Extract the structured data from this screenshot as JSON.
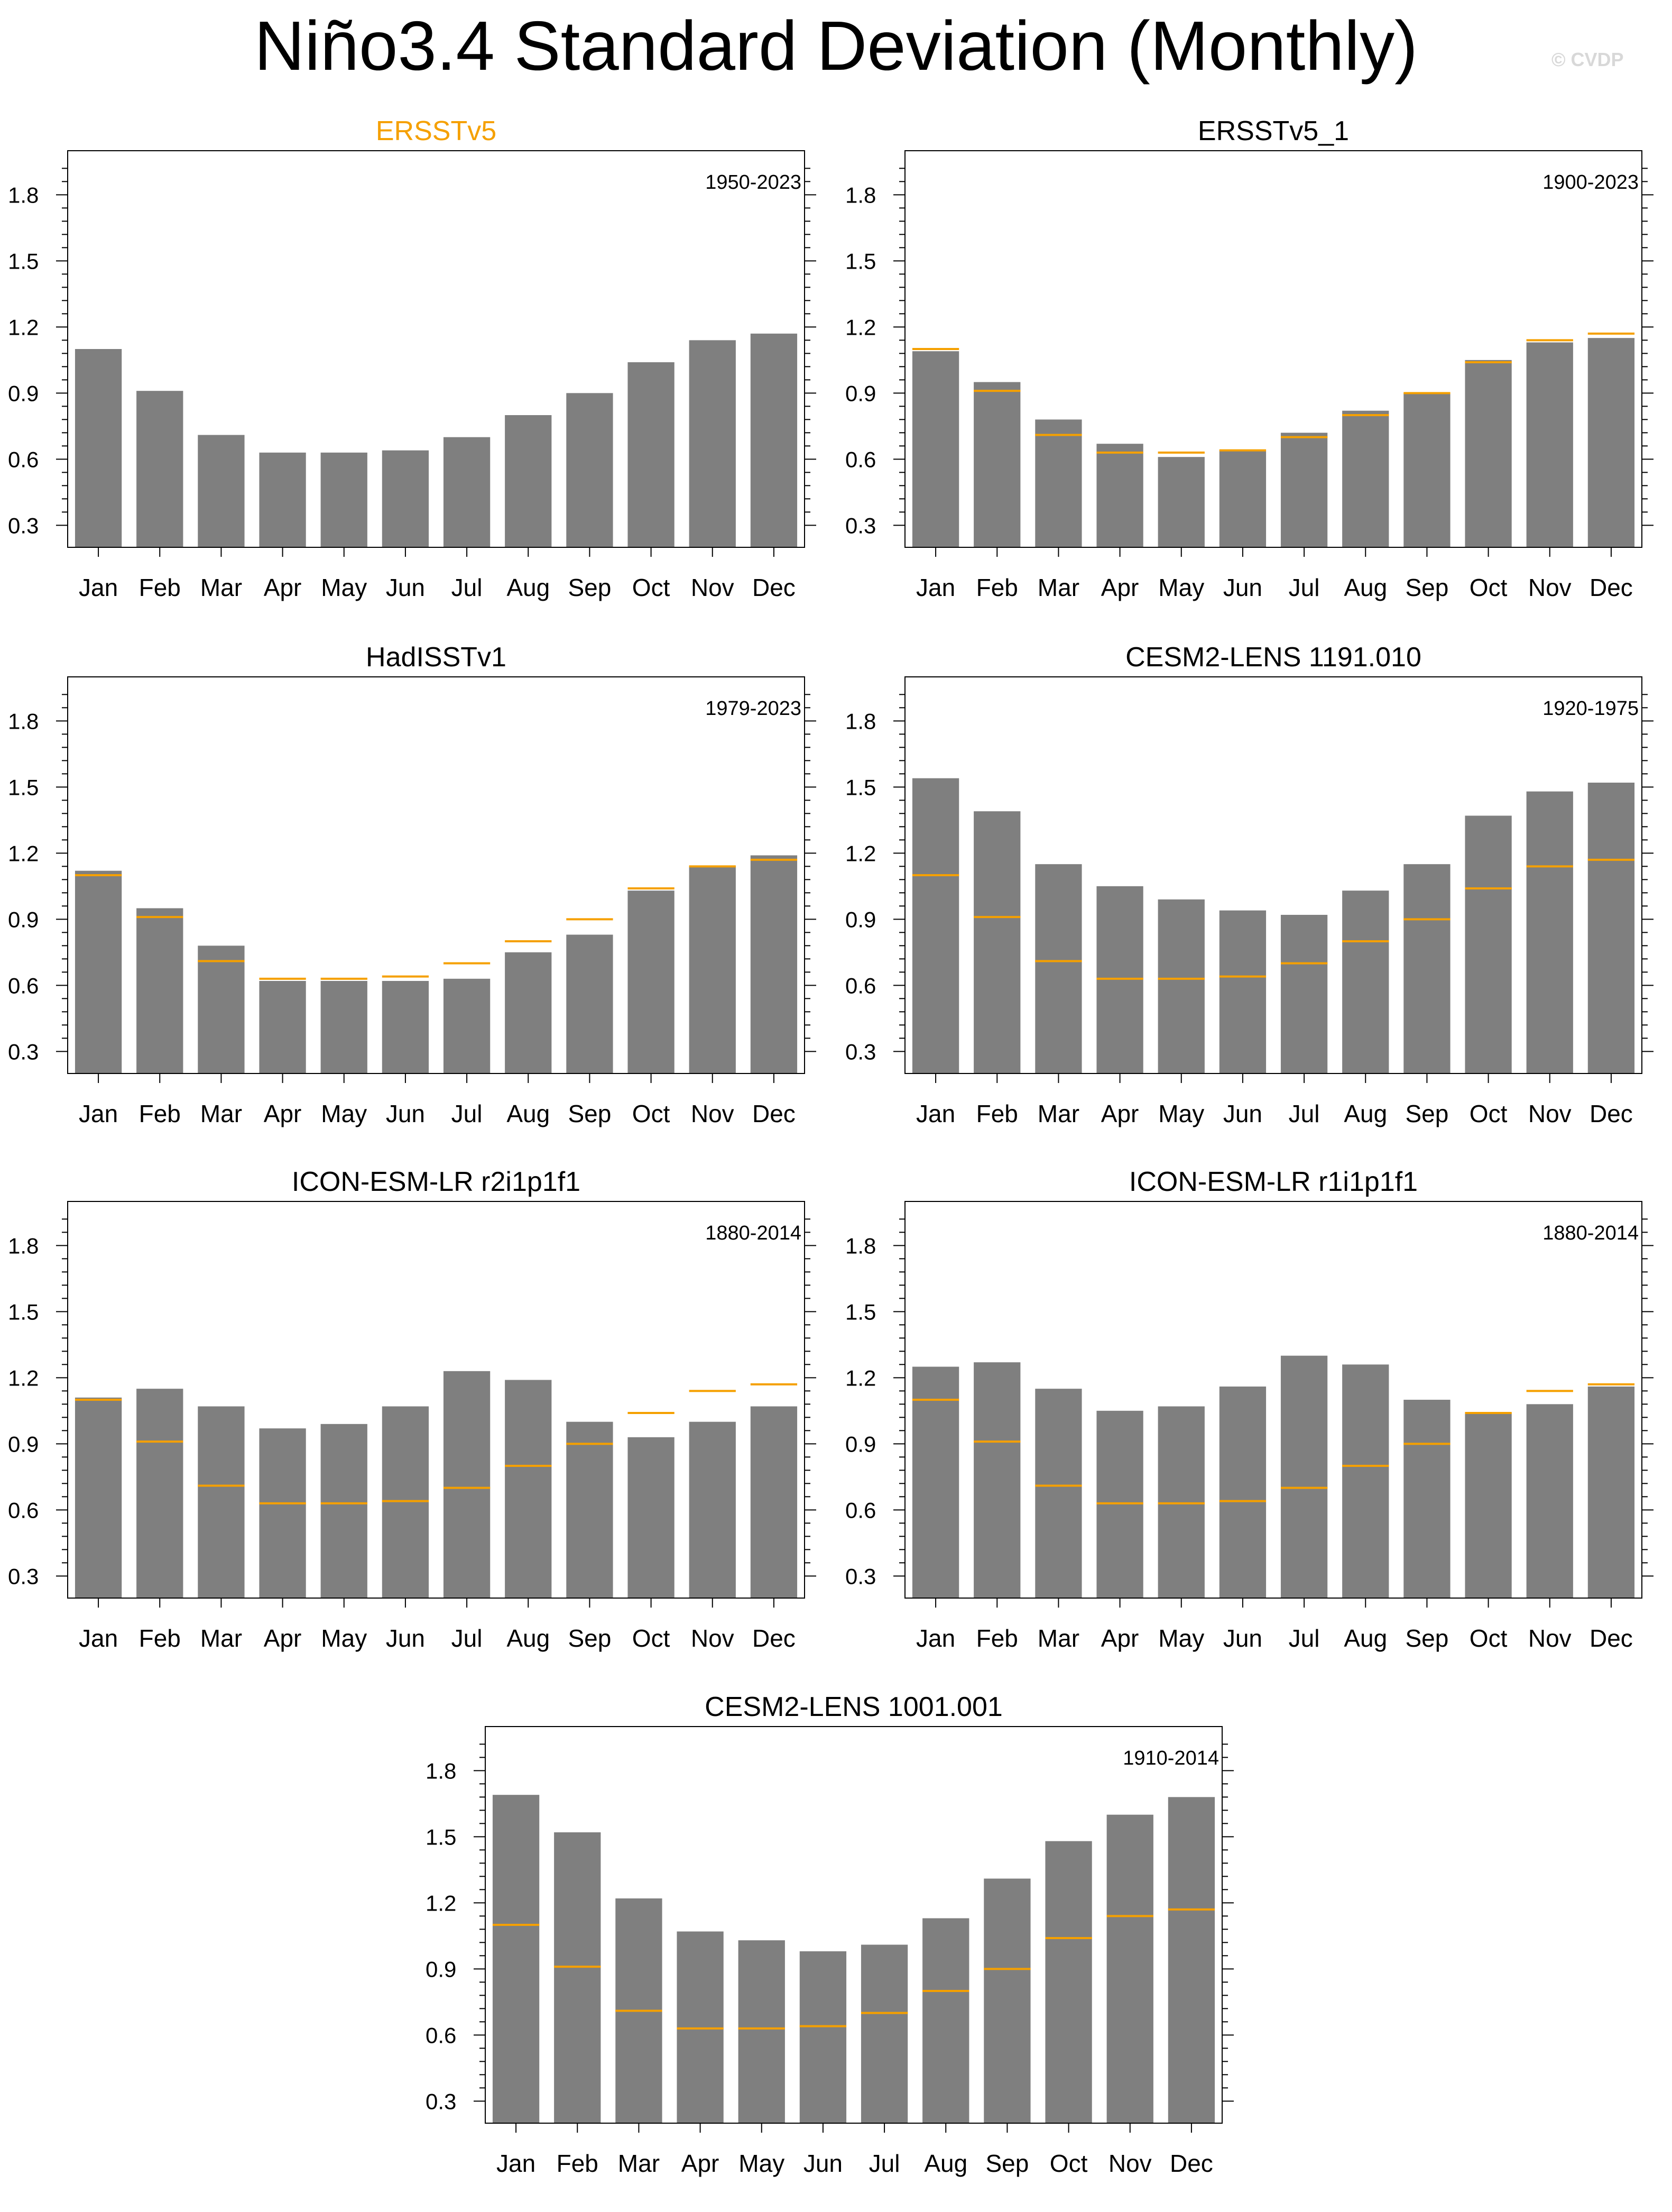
{
  "title": "Niño3.4 Standard Deviation (Monthly)",
  "watermark": "© CVDP",
  "colors": {
    "bar": "#7f7f7f",
    "reference": "#f5a000",
    "title_highlight": "#f5a000",
    "axis": "#000000"
  },
  "chart_data": [
    {
      "type": "bar",
      "title": "ERSSTv5",
      "title_color": "#f5a000",
      "period": "1950-2023",
      "categories": [
        "Jan",
        "Feb",
        "Mar",
        "Apr",
        "May",
        "Jun",
        "Jul",
        "Aug",
        "Sep",
        "Oct",
        "Nov",
        "Dec"
      ],
      "values": [
        1.1,
        0.91,
        0.71,
        0.63,
        0.63,
        0.64,
        0.7,
        0.8,
        0.9,
        1.04,
        1.14,
        1.17
      ],
      "reference": null,
      "ylim": [
        0.2,
        2.0
      ],
      "yticks": [
        "0.3",
        "0.6",
        "0.9",
        "1.2",
        "1.5",
        "1.8"
      ]
    },
    {
      "type": "bar",
      "title": "ERSSTv5_1",
      "period": "1900-2023",
      "categories": [
        "Jan",
        "Feb",
        "Mar",
        "Apr",
        "May",
        "Jun",
        "Jul",
        "Aug",
        "Sep",
        "Oct",
        "Nov",
        "Dec"
      ],
      "values": [
        1.09,
        0.95,
        0.78,
        0.67,
        0.61,
        0.64,
        0.72,
        0.82,
        0.9,
        1.05,
        1.13,
        1.15
      ],
      "reference": [
        1.1,
        0.91,
        0.71,
        0.63,
        0.63,
        0.64,
        0.7,
        0.8,
        0.9,
        1.04,
        1.14,
        1.17
      ],
      "ylim": [
        0.2,
        2.0
      ],
      "yticks": [
        "0.3",
        "0.6",
        "0.9",
        "1.2",
        "1.5",
        "1.8"
      ]
    },
    {
      "type": "bar",
      "title": "HadISSTv1",
      "period": "1979-2023",
      "categories": [
        "Jan",
        "Feb",
        "Mar",
        "Apr",
        "May",
        "Jun",
        "Jul",
        "Aug",
        "Sep",
        "Oct",
        "Nov",
        "Dec"
      ],
      "values": [
        1.12,
        0.95,
        0.78,
        0.62,
        0.62,
        0.62,
        0.63,
        0.75,
        0.83,
        1.03,
        1.14,
        1.19
      ],
      "reference": [
        1.1,
        0.91,
        0.71,
        0.63,
        0.63,
        0.64,
        0.7,
        0.8,
        0.9,
        1.04,
        1.14,
        1.17
      ],
      "ylim": [
        0.2,
        2.0
      ],
      "yticks": [
        "0.3",
        "0.6",
        "0.9",
        "1.2",
        "1.5",
        "1.8"
      ]
    },
    {
      "type": "bar",
      "title": "CESM2-LENS 1191.010",
      "period": "1920-1975",
      "categories": [
        "Jan",
        "Feb",
        "Mar",
        "Apr",
        "May",
        "Jun",
        "Jul",
        "Aug",
        "Sep",
        "Oct",
        "Nov",
        "Dec"
      ],
      "values": [
        1.54,
        1.39,
        1.15,
        1.05,
        0.99,
        0.94,
        0.92,
        1.03,
        1.15,
        1.37,
        1.48,
        1.52
      ],
      "reference": [
        1.1,
        0.91,
        0.71,
        0.63,
        0.63,
        0.64,
        0.7,
        0.8,
        0.9,
        1.04,
        1.14,
        1.17
      ],
      "ylim": [
        0.2,
        2.0
      ],
      "yticks": [
        "0.3",
        "0.6",
        "0.9",
        "1.2",
        "1.5",
        "1.8"
      ]
    },
    {
      "type": "bar",
      "title": "ICON-ESM-LR r2i1p1f1",
      "period": "1880-2014",
      "categories": [
        "Jan",
        "Feb",
        "Mar",
        "Apr",
        "May",
        "Jun",
        "Jul",
        "Aug",
        "Sep",
        "Oct",
        "Nov",
        "Dec"
      ],
      "values": [
        1.11,
        1.15,
        1.07,
        0.97,
        0.99,
        1.07,
        1.23,
        1.19,
        1.0,
        0.93,
        1.0,
        1.07
      ],
      "reference": [
        1.1,
        0.91,
        0.71,
        0.63,
        0.63,
        0.64,
        0.7,
        0.8,
        0.9,
        1.04,
        1.14,
        1.17
      ],
      "ylim": [
        0.2,
        2.0
      ],
      "yticks": [
        "0.3",
        "0.6",
        "0.9",
        "1.2",
        "1.5",
        "1.8"
      ]
    },
    {
      "type": "bar",
      "title": "ICON-ESM-LR r1i1p1f1",
      "period": "1880-2014",
      "categories": [
        "Jan",
        "Feb",
        "Mar",
        "Apr",
        "May",
        "Jun",
        "Jul",
        "Aug",
        "Sep",
        "Oct",
        "Nov",
        "Dec"
      ],
      "values": [
        1.25,
        1.27,
        1.15,
        1.05,
        1.07,
        1.16,
        1.3,
        1.26,
        1.1,
        1.04,
        1.08,
        1.16
      ],
      "reference": [
        1.1,
        0.91,
        0.71,
        0.63,
        0.63,
        0.64,
        0.7,
        0.8,
        0.9,
        1.04,
        1.14,
        1.17
      ],
      "ylim": [
        0.2,
        2.0
      ],
      "yticks": [
        "0.3",
        "0.6",
        "0.9",
        "1.2",
        "1.5",
        "1.8"
      ]
    },
    {
      "type": "bar",
      "title": "CESM2-LENS 1001.001",
      "period": "1910-2014",
      "categories": [
        "Jan",
        "Feb",
        "Mar",
        "Apr",
        "May",
        "Jun",
        "Jul",
        "Aug",
        "Sep",
        "Oct",
        "Nov",
        "Dec"
      ],
      "values": [
        1.69,
        1.52,
        1.22,
        1.07,
        1.03,
        0.98,
        1.01,
        1.13,
        1.31,
        1.48,
        1.6,
        1.68
      ],
      "reference": [
        1.1,
        0.91,
        0.71,
        0.63,
        0.63,
        0.64,
        0.7,
        0.8,
        0.9,
        1.04,
        1.14,
        1.17
      ],
      "ylim": [
        0.2,
        2.0
      ],
      "yticks": [
        "0.3",
        "0.6",
        "0.9",
        "1.2",
        "1.5",
        "1.8"
      ]
    }
  ]
}
